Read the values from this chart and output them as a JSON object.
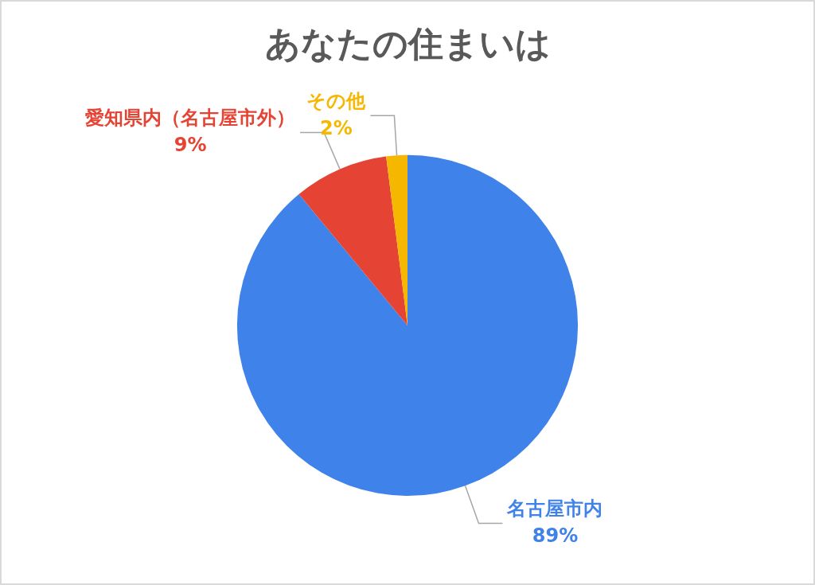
{
  "chart_data": {
    "type": "pie",
    "title": "あなたの住まいは",
    "categories": [
      "名古屋市内",
      "愛知県内（名古屋市外）",
      "その他"
    ],
    "values": [
      89,
      9,
      2
    ],
    "colors": [
      "#3f82ea",
      "#e54434",
      "#f5b700"
    ],
    "value_labels": [
      "89%",
      "9%",
      "2%"
    ]
  }
}
